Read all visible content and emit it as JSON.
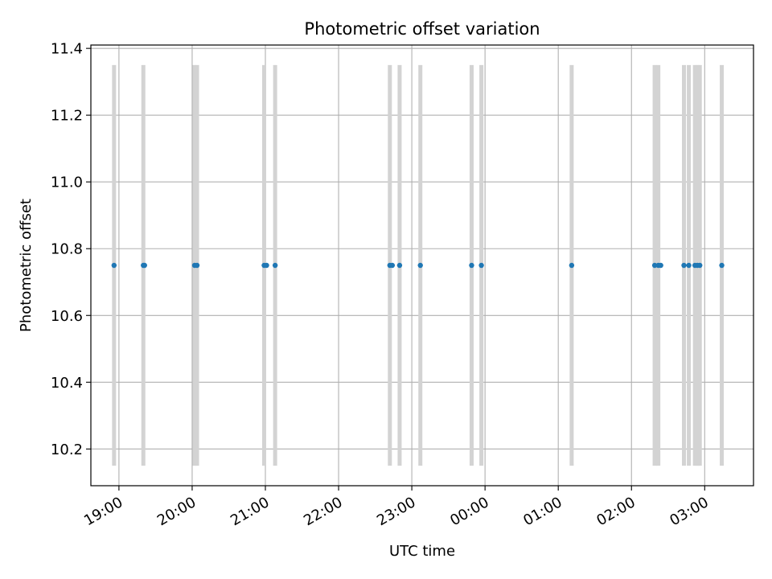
{
  "chart_data": {
    "type": "scatter",
    "title": "Photometric offset variation",
    "xlabel": "UTC time",
    "ylabel": "Photometric offset",
    "x_axis": {
      "type": "time",
      "range": [
        "2000-01-01T18:37:00",
        "2000-01-02T03:40:00"
      ],
      "ticks": [
        {
          "t": "2000-01-01T19:00:00",
          "label": "19:00"
        },
        {
          "t": "2000-01-01T20:00:00",
          "label": "20:00"
        },
        {
          "t": "2000-01-01T21:00:00",
          "label": "21:00"
        },
        {
          "t": "2000-01-01T22:00:00",
          "label": "22:00"
        },
        {
          "t": "2000-01-01T23:00:00",
          "label": "23:00"
        },
        {
          "t": "2000-01-02T00:00:00",
          "label": "00:00"
        },
        {
          "t": "2000-01-02T01:00:00",
          "label": "01:00"
        },
        {
          "t": "2000-01-02T02:00:00",
          "label": "02:00"
        },
        {
          "t": "2000-01-02T03:00:00",
          "label": "03:00"
        }
      ]
    },
    "y_axis": {
      "range": [
        10.09,
        11.41
      ],
      "ticks": [
        10.2,
        10.4,
        10.6,
        10.8,
        11.0,
        11.2,
        11.4
      ],
      "tick_labels": [
        "10.2",
        "10.4",
        "10.6",
        "10.8",
        "11.0",
        "11.2",
        "11.4"
      ]
    },
    "grid": true,
    "series": [
      {
        "style": "points",
        "color": "#1f77b4",
        "points": [
          {
            "t": "2000-01-01T18:56:00",
            "y": 10.75
          },
          {
            "t": "2000-01-01T19:20:00",
            "y": 10.75
          },
          {
            "t": "2000-01-01T19:21:00",
            "y": 10.75
          },
          {
            "t": "2000-01-01T20:02:00",
            "y": 10.75
          },
          {
            "t": "2000-01-01T20:04:00",
            "y": 10.75
          },
          {
            "t": "2000-01-01T20:59:00",
            "y": 10.75
          },
          {
            "t": "2000-01-01T21:01:00",
            "y": 10.75
          },
          {
            "t": "2000-01-01T21:08:00",
            "y": 10.75
          },
          {
            "t": "2000-01-01T22:42:00",
            "y": 10.75
          },
          {
            "t": "2000-01-01T22:44:00",
            "y": 10.75
          },
          {
            "t": "2000-01-01T22:50:00",
            "y": 10.75
          },
          {
            "t": "2000-01-01T23:07:00",
            "y": 10.75
          },
          {
            "t": "2000-01-01T23:49:00",
            "y": 10.75
          },
          {
            "t": "2000-01-01T23:57:00",
            "y": 10.75
          },
          {
            "t": "2000-01-02T01:11:00",
            "y": 10.75
          },
          {
            "t": "2000-01-02T02:19:00",
            "y": 10.75
          },
          {
            "t": "2000-01-02T02:22:00",
            "y": 10.75
          },
          {
            "t": "2000-01-02T02:24:00",
            "y": 10.75
          },
          {
            "t": "2000-01-02T02:43:00",
            "y": 10.75
          },
          {
            "t": "2000-01-02T02:47:00",
            "y": 10.75
          },
          {
            "t": "2000-01-02T02:52:00",
            "y": 10.75
          },
          {
            "t": "2000-01-02T02:54:00",
            "y": 10.75
          },
          {
            "t": "2000-01-02T02:56:00",
            "y": 10.75
          },
          {
            "t": "2000-01-02T03:14:00",
            "y": 10.75
          }
        ]
      }
    ],
    "vertical_markers": {
      "color": "#d3d3d3",
      "y_range": [
        10.15,
        11.35
      ],
      "times": [
        "2000-01-01T18:56:00",
        "2000-01-01T19:20:00",
        "2000-01-01T20:02:00",
        "2000-01-01T20:04:00",
        "2000-01-01T20:59:00",
        "2000-01-01T21:08:00",
        "2000-01-01T22:42:00",
        "2000-01-01T22:50:00",
        "2000-01-01T23:07:00",
        "2000-01-01T23:49:00",
        "2000-01-01T23:57:00",
        "2000-01-02T01:11:00",
        "2000-01-02T02:19:00",
        "2000-01-02T02:22:00",
        "2000-01-02T02:43:00",
        "2000-01-02T02:47:00",
        "2000-01-02T02:52:00",
        "2000-01-02T02:54:00",
        "2000-01-02T02:56:00",
        "2000-01-02T03:14:00"
      ]
    }
  }
}
